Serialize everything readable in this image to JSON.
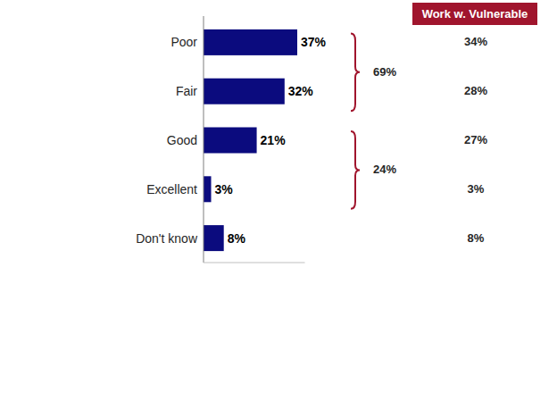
{
  "chart_data": {
    "type": "bar",
    "orientation": "horizontal",
    "categories": [
      "Poor",
      "Fair",
      "Good",
      "Excellent",
      "Don't know"
    ],
    "values": [
      37,
      32,
      21,
      3,
      8
    ],
    "value_labels": [
      "37%",
      "32%",
      "21%",
      "3%",
      "8%"
    ],
    "color": "#0b0b7e",
    "data_labels": true,
    "tick_labels": false,
    "xlim": [
      0,
      40
    ],
    "groups": [
      {
        "label": "69%",
        "value": 69,
        "from": "Poor",
        "to": "Fair"
      },
      {
        "label": "24%",
        "value": 24,
        "from": "Good",
        "to": "Excellent"
      }
    ],
    "comparison": {
      "title": "Work w. Vulnerable",
      "color": "#a0152d",
      "values": [
        34,
        28,
        27,
        3,
        8
      ],
      "value_labels": [
        "34%",
        "28%",
        "27%",
        "3%",
        "8%"
      ]
    }
  }
}
